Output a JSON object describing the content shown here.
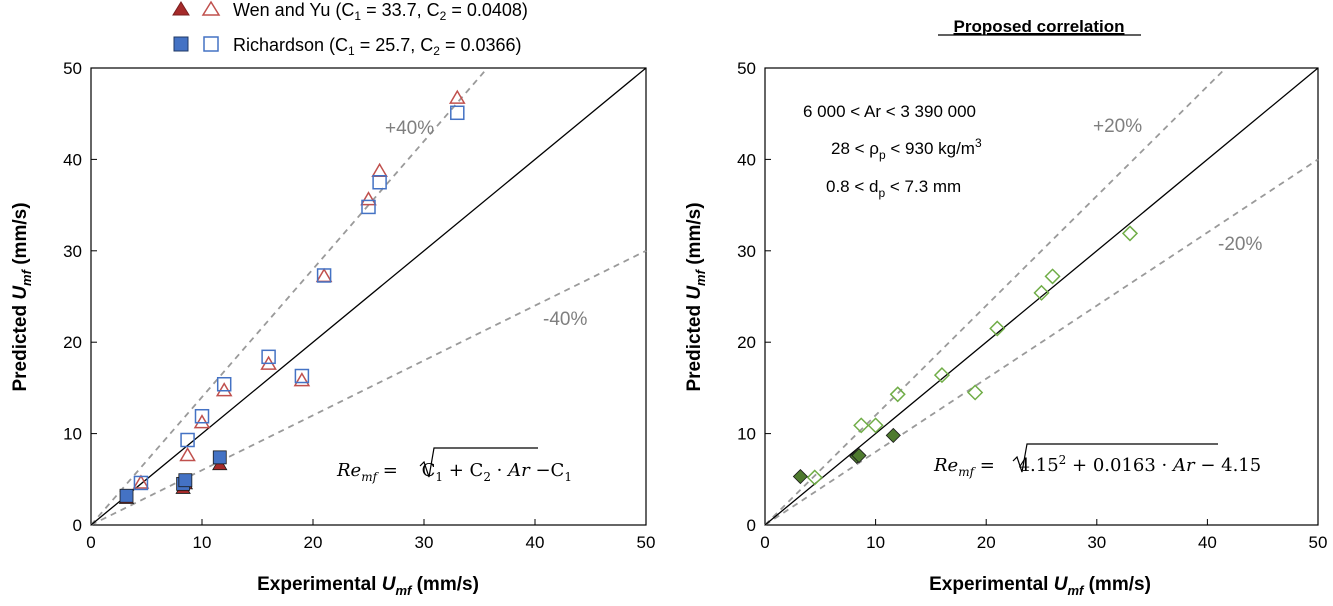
{
  "chart_data": [
    {
      "type": "scatter",
      "title": "",
      "xlabel_prefix": "Experimental ",
      "xlabel_var": "U",
      "xlabel_sub": "mf",
      "xlabel_suffix": " (mm/s)",
      "ylabel_prefix": "Predicted ",
      "ylabel_var": "U",
      "ylabel_sub": "mf",
      "ylabel_suffix": " (mm/s)",
      "xlim": [
        0,
        50
      ],
      "ylim": [
        0,
        50
      ],
      "xticks": [
        "0",
        "10",
        "20",
        "30",
        "40",
        "50"
      ],
      "yticks": [
        "0",
        "10",
        "20",
        "30",
        "40",
        "50"
      ],
      "grid": false,
      "band_labels": {
        "upper": "+40%",
        "lower": "-40%"
      },
      "band_factors": {
        "upper": 1.4,
        "lower": 0.6
      },
      "legend": {
        "placement": "top-left (above plot)",
        "entries": [
          {
            "name": "Wen and Yu (C",
            "sub1": "1",
            "mid": " = 33.7, C",
            "sub2": "2",
            "end": " = 0.0408)"
          },
          {
            "name": "Richardson (C",
            "sub1": "1",
            "mid": " = 25.7, C",
            "sub2": "2",
            "end": " = 0.0366)"
          }
        ]
      },
      "equation": {
        "lhs": "Re",
        "lhs_sub": "mf",
        "eq": " = ",
        "c1": "C",
        "c1sub": "1",
        "plus": " + C",
        "c2sub": "2",
        "dot": " · ",
        "ar": "Ar",
        "minus": " −C",
        "msub": "1"
      },
      "series": [
        {
          "name": "Wen and Yu (filled)",
          "marker": "triangle",
          "filled": true,
          "color": "#a52a2a",
          "x": [
            3.2,
            8.3,
            8.5,
            11.6
          ],
          "y": [
            2.9,
            4.0,
            4.5,
            6.6
          ]
        },
        {
          "name": "Wen and Yu (open)",
          "marker": "triangle",
          "filled": false,
          "color": "#c0504d",
          "x": [
            4.5,
            8.7,
            10.0,
            12.0,
            16.0,
            19.0,
            21.0,
            25.0,
            26.0,
            33.0
          ],
          "y": [
            4.6,
            7.6,
            11.2,
            14.7,
            17.6,
            15.8,
            27.2,
            35.6,
            38.7,
            46.7
          ]
        },
        {
          "name": "Richardson (filled)",
          "marker": "square",
          "filled": true,
          "color": "#4472c4",
          "x": [
            3.2,
            8.3,
            8.5,
            11.6
          ],
          "y": [
            3.2,
            4.5,
            4.9,
            7.4
          ]
        },
        {
          "name": "Richardson (open)",
          "marker": "square",
          "filled": false,
          "color": "#4472c4",
          "x": [
            4.5,
            8.7,
            10.0,
            12.0,
            16.0,
            19.0,
            21.0,
            25.0,
            26.0,
            33.0
          ],
          "y": [
            4.6,
            9.3,
            11.9,
            15.4,
            18.4,
            16.3,
            27.3,
            34.8,
            37.5,
            45.1
          ]
        }
      ]
    },
    {
      "type": "scatter",
      "title": "Proposed correlation",
      "xlabel_prefix": "Experimental ",
      "xlabel_var": "U",
      "xlabel_sub": "mf",
      "xlabel_suffix": " (mm/s)",
      "ylabel_prefix": "Predicted ",
      "ylabel_var": "U",
      "ylabel_sub": "mf",
      "ylabel_suffix": " (mm/s)",
      "xlim": [
        0,
        50
      ],
      "ylim": [
        0,
        50
      ],
      "xticks": [
        "0",
        "10",
        "20",
        "30",
        "40",
        "50"
      ],
      "yticks": [
        "0",
        "10",
        "20",
        "30",
        "40",
        "50"
      ],
      "grid": false,
      "band_labels": {
        "upper": "+20%",
        "lower": "-20%"
      },
      "band_factors": {
        "upper": 1.2,
        "lower": 0.8
      },
      "conditions": {
        "line1": "6 000 < Ar < 3 390 000",
        "line2_a": "28 < ρ",
        "line2_sub": "p",
        "line2_b": " < 930 kg/m",
        "line2_sup": "3",
        "line3_a": "0.8 < d",
        "line3_sub": "p",
        "line3_b": " < 7.3 mm"
      },
      "equation": {
        "lhs": "Re",
        "lhs_sub": "mf",
        "eq": " = ",
        "a": "4.15",
        "sup": "2",
        "b": " + 0.0163 · ",
        "ar": "Ar",
        "c": " − 4.15"
      },
      "series": [
        {
          "name": "Proposed (filled)",
          "marker": "diamond",
          "filled": true,
          "color": "#4e7a2e",
          "x": [
            3.2,
            8.3,
            8.5,
            11.6
          ],
          "y": [
            5.3,
            7.5,
            7.6,
            9.8
          ]
        },
        {
          "name": "Proposed (open)",
          "marker": "diamond",
          "filled": false,
          "color": "#70ad47",
          "x": [
            4.5,
            8.7,
            10.0,
            12.0,
            16.0,
            19.0,
            21.0,
            25.0,
            26.0,
            33.0
          ],
          "y": [
            5.2,
            10.9,
            10.9,
            14.3,
            16.4,
            14.5,
            21.5,
            25.4,
            27.2,
            31.9
          ]
        }
      ]
    }
  ]
}
